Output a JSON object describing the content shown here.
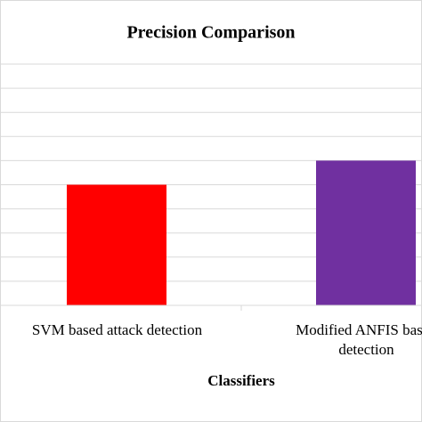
{
  "chart_data": {
    "type": "bar",
    "title": "Precision Comparison",
    "x_label": "Classifiers",
    "categories": [
      "SVM based attack detection",
      "Modified ANFIS based detection"
    ],
    "series": [
      {
        "name": "Precision",
        "values": [
          50,
          60
        ]
      }
    ],
    "colors": [
      "#ff0000",
      "#7030a0"
    ],
    "ylim": [
      0,
      100
    ],
    "yticks": [
      0,
      10,
      20,
      30,
      40,
      50,
      60,
      70,
      80,
      90,
      100
    ],
    "grid": true
  }
}
